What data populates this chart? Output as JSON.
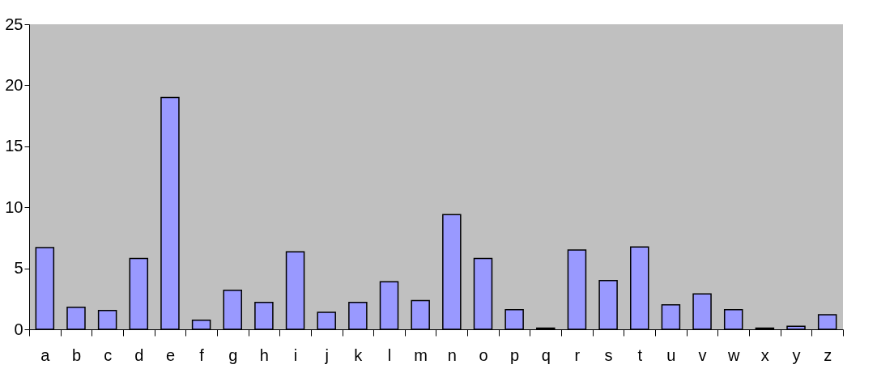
{
  "chart_data": {
    "type": "bar",
    "categories": [
      "a",
      "b",
      "c",
      "d",
      "e",
      "f",
      "g",
      "h",
      "i",
      "j",
      "k",
      "l",
      "m",
      "n",
      "o",
      "p",
      "q",
      "r",
      "s",
      "t",
      "u",
      "v",
      "w",
      "x",
      "y",
      "z"
    ],
    "values": [
      6.7,
      1.8,
      1.55,
      5.8,
      19.0,
      0.75,
      3.2,
      2.2,
      6.35,
      1.4,
      2.2,
      3.9,
      2.35,
      9.4,
      5.8,
      1.6,
      0.1,
      6.5,
      4.0,
      6.75,
      2.0,
      2.9,
      1.6,
      0.1,
      0.25,
      1.2
    ],
    "color": "#9999ff",
    "ylim": [
      0,
      25
    ],
    "yticks": [
      0,
      5,
      10,
      15,
      20,
      25
    ],
    "grid": false
  }
}
